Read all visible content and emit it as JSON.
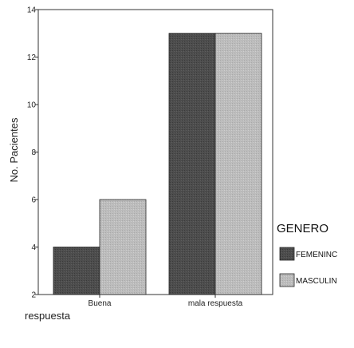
{
  "chart_data": {
    "type": "bar",
    "categories": [
      "Buena",
      "mala respuesta"
    ],
    "series": [
      {
        "name": "FEMENINC",
        "values": [
          4,
          13
        ],
        "color": "#4d4d4d"
      },
      {
        "name": "MASCULIN",
        "values": [
          6,
          13
        ],
        "color": "#bcbcbc"
      }
    ],
    "title": "",
    "xlabel": "respuesta",
    "ylabel": "No. Pacientes",
    "ylim": [
      2,
      14
    ],
    "yticks": [
      2,
      4,
      6,
      8,
      10,
      12,
      14
    ],
    "grid": false,
    "legend": {
      "title": "GENERO",
      "placement": "right"
    }
  }
}
